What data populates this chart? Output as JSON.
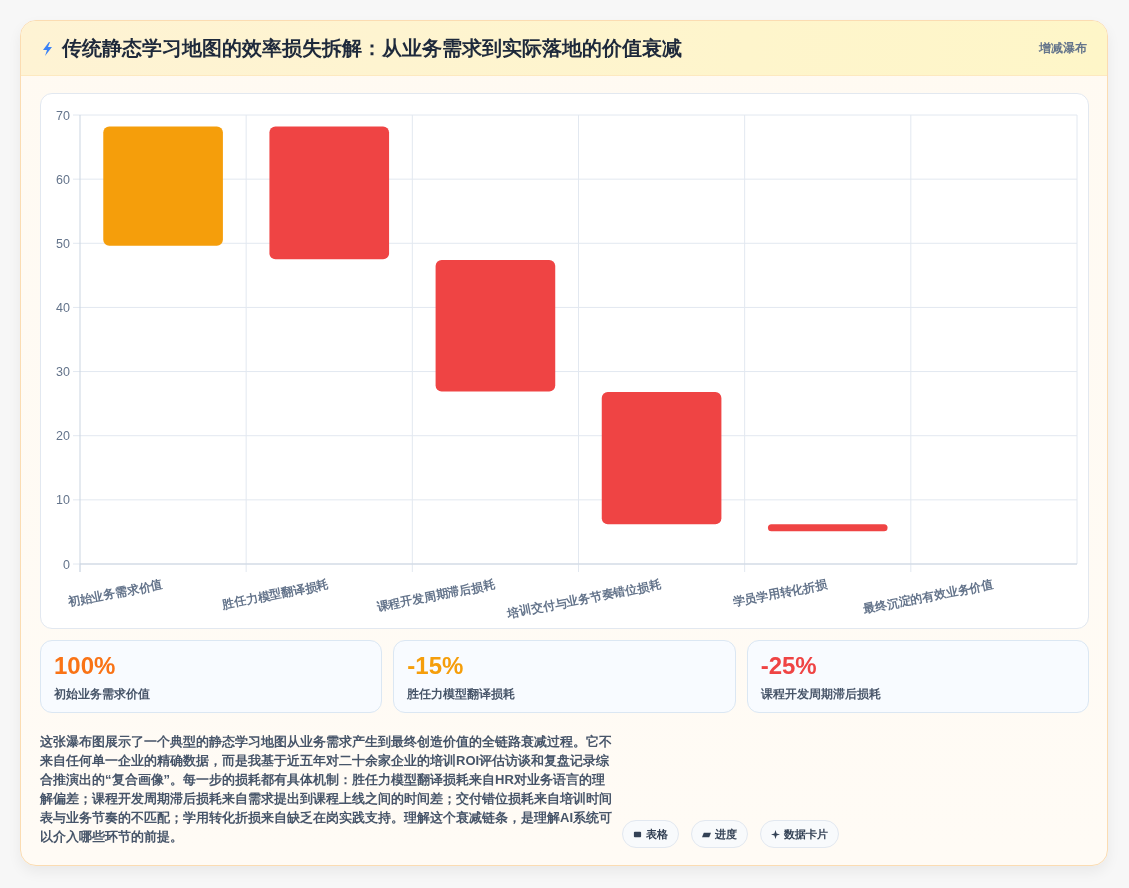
{
  "chart_data": [
    {
      "type": "bar",
      "title": "传统静态学习地图的效率损失拆解：从业务需求到实际落地的价值衰减",
      "subtitle": "增减瀑布",
      "categories": [
        "初始业务需求价值",
        "胜任力模型翻译损耗",
        "课程开发周期滞后损耗",
        "培训交付与业务节奏错位损耗",
        "学员学用转化折损",
        "最终沉淀的有效业务价值"
      ],
      "values": [
        18.6,
        20.7,
        20.5,
        20.6,
        1.1,
        null
      ],
      "base": [
        49.6,
        47.5,
        26.9,
        6.2,
        5.1,
        null
      ],
      "colors": [
        "#f59e0b",
        "#ef4444",
        "#ef4444",
        "#ef4444",
        "#ef4444",
        null
      ],
      "ylim": [
        0,
        70
      ],
      "yticks": [
        0,
        10,
        20,
        30,
        40,
        50,
        60,
        70
      ],
      "grid": true
    },
    {
      "type": "other",
      "categories": [
        "初始业务需求价值",
        "胜任力模型翻译损耗",
        "课程开发周期滞后损耗"
      ],
      "value_labels": [
        "100%",
        "-15%",
        "-25%"
      ],
      "annotations": [
        "这张瀑布图展示了一个典型的静态学习地图从业务需求产生到最终创造价值的全链路衰减过程。它不来自任何单一企业的精确数据，而是我基于近五年对二十余家企业的培训ROI评估访谈和复盘记录综合推演出的“复合画像”。每一步的损耗都有具体机制：胜任力模型翻译损耗来自HR对业务语言的理解偏差；课程开发周期滞后损耗来自需求提出到课程上线之间的时间差；交付错位损耗来自培训时间表与业务节奏的不匹配；学用转化折损来自缺乏在岗实践支持。理解这个衰减链条，是理解AI系统可以介入哪些环节的前提。"
      ]
    },
    {
      "type": "other",
      "annotations": [
        "表格",
        "进度",
        "数据卡片"
      ]
    }
  ]
}
